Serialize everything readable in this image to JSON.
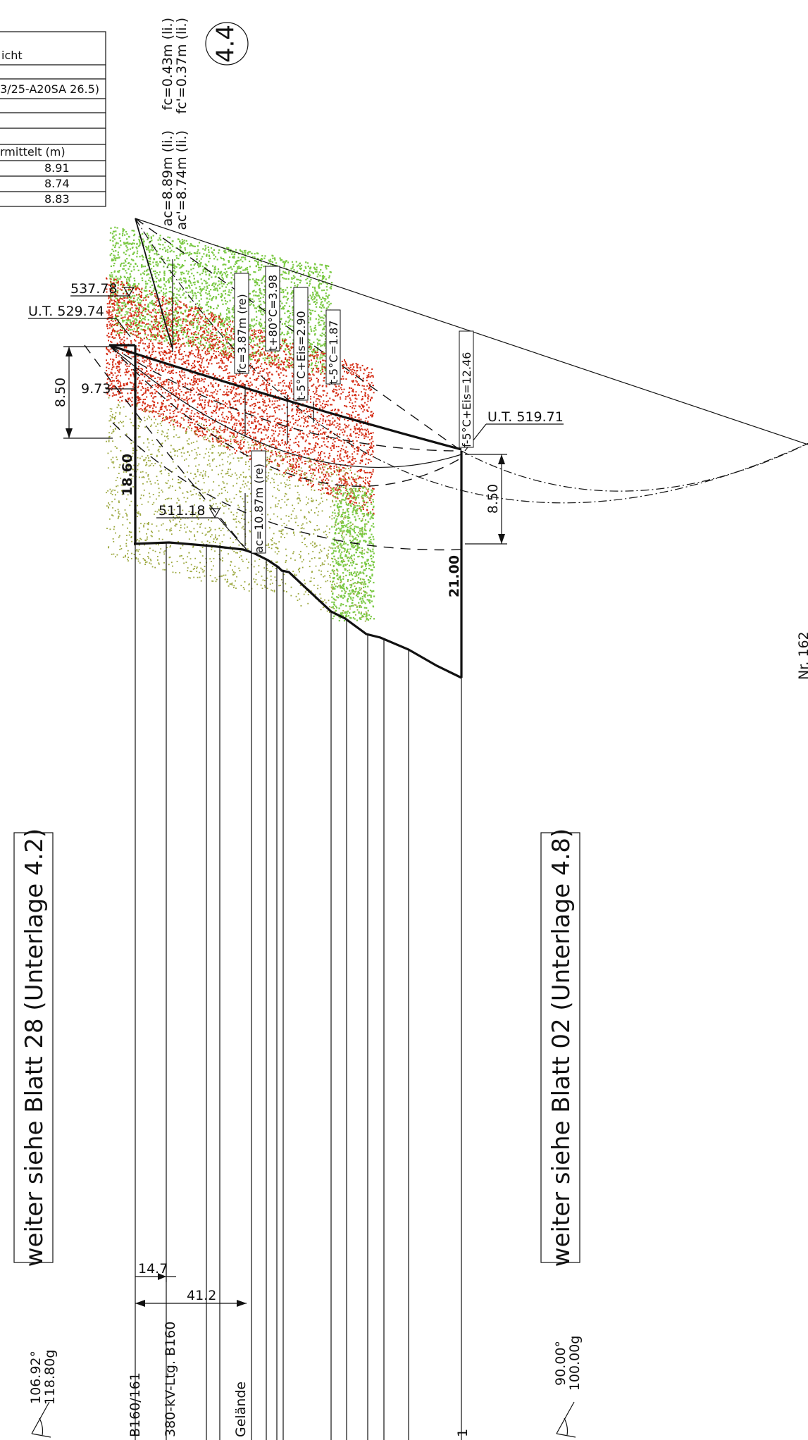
{
  "legend_table": {
    "rows": [
      "icht",
      "3/25-A20SA 26.5)",
      "",
      "",
      "rmittelt (m)",
      "8.91",
      "8.74",
      "8.83"
    ]
  },
  "span_number": "4.4",
  "top_labels": {
    "fc": "fc=0.43m (li.)",
    "fc_prime": "fc'=0.37m (li.)",
    "ac": "ac=8.89m (li.)",
    "ac_prime": "ac'=8.74m (li.)"
  },
  "elevations": {
    "e537": "537.78",
    "ut529": "U.T. 529.74",
    "ut519": "U.T. 519.71",
    "e511": "511.18"
  },
  "dimensions": {
    "d850_left": "8.50",
    "d973": "9.73",
    "d1860": "18.60",
    "d850_right": "8.50",
    "d2100": "21.00",
    "d147": "14.7",
    "d412": "41.2"
  },
  "sag_labels": {
    "fc_re": "fc=3.87m (re)",
    "t80": "t+80°C=3.98",
    "t5eis": "t-5°C+Eis=2.90",
    "t5": "t-5°C=1.87",
    "f5eis": "f-5°C+Eis=12.46",
    "ac_re": "ac=10.87m (re)"
  },
  "notes": {
    "left_sheet": "weiter siehe Blatt 28 (Unterlage 4.2)",
    "right_sheet": "weiter siehe Blatt 02 (Unterlage 4.8)",
    "nr": "Nr. 162"
  },
  "angles": {
    "left_deg": "106.92°",
    "left_gon": "118.80g",
    "right_deg": "90.00°",
    "right_gon": "100.00g"
  },
  "bottom_labels": {
    "b160": "B160/161",
    "line380": "380-kV-Ltg. B160",
    "gelaende": "Gelände",
    "one": "1"
  },
  "colors": {
    "vegetation_green": "#7ac943",
    "vegetation_red": "#d42a12",
    "vegetation_olive": "#9aa63a"
  }
}
